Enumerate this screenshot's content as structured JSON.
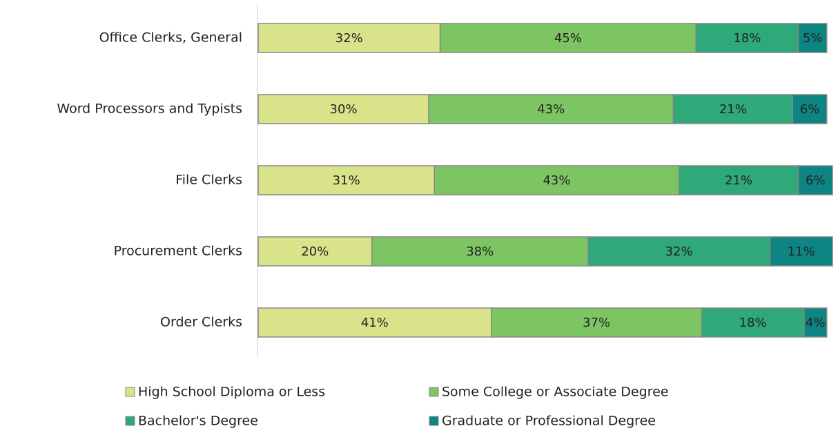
{
  "chart_data": {
    "type": "stacked_bar_horizontal",
    "categories": [
      "Office Clerks, General",
      "Word Processors and Typists",
      "File Clerks",
      "Procurement Clerks",
      "Order Clerks"
    ],
    "series": [
      {
        "name": "High School Diploma or Less",
        "color": "#d9e38a",
        "values": [
          32,
          30,
          31,
          20,
          41
        ]
      },
      {
        "name": "Some College or Associate Degree",
        "color": "#7dc462",
        "values": [
          45,
          43,
          43,
          38,
          37
        ]
      },
      {
        "name": "Bachelor's Degree",
        "color": "#2fa87a",
        "values": [
          18,
          21,
          21,
          32,
          18
        ]
      },
      {
        "name": "Graduate or Professional Degree",
        "color": "#0d8582",
        "values": [
          5,
          6,
          6,
          11,
          4
        ]
      }
    ],
    "value_labels": [
      [
        "32%",
        "30%",
        "31%",
        "20%",
        "41%"
      ],
      [
        "45%",
        "43%",
        "43%",
        "38%",
        "37%"
      ],
      [
        "18%",
        "21%",
        "21%",
        "32%",
        "18%"
      ],
      [
        "5%",
        "6%",
        "6%",
        "11%",
        "4%"
      ]
    ],
    "legend": "bottom"
  }
}
